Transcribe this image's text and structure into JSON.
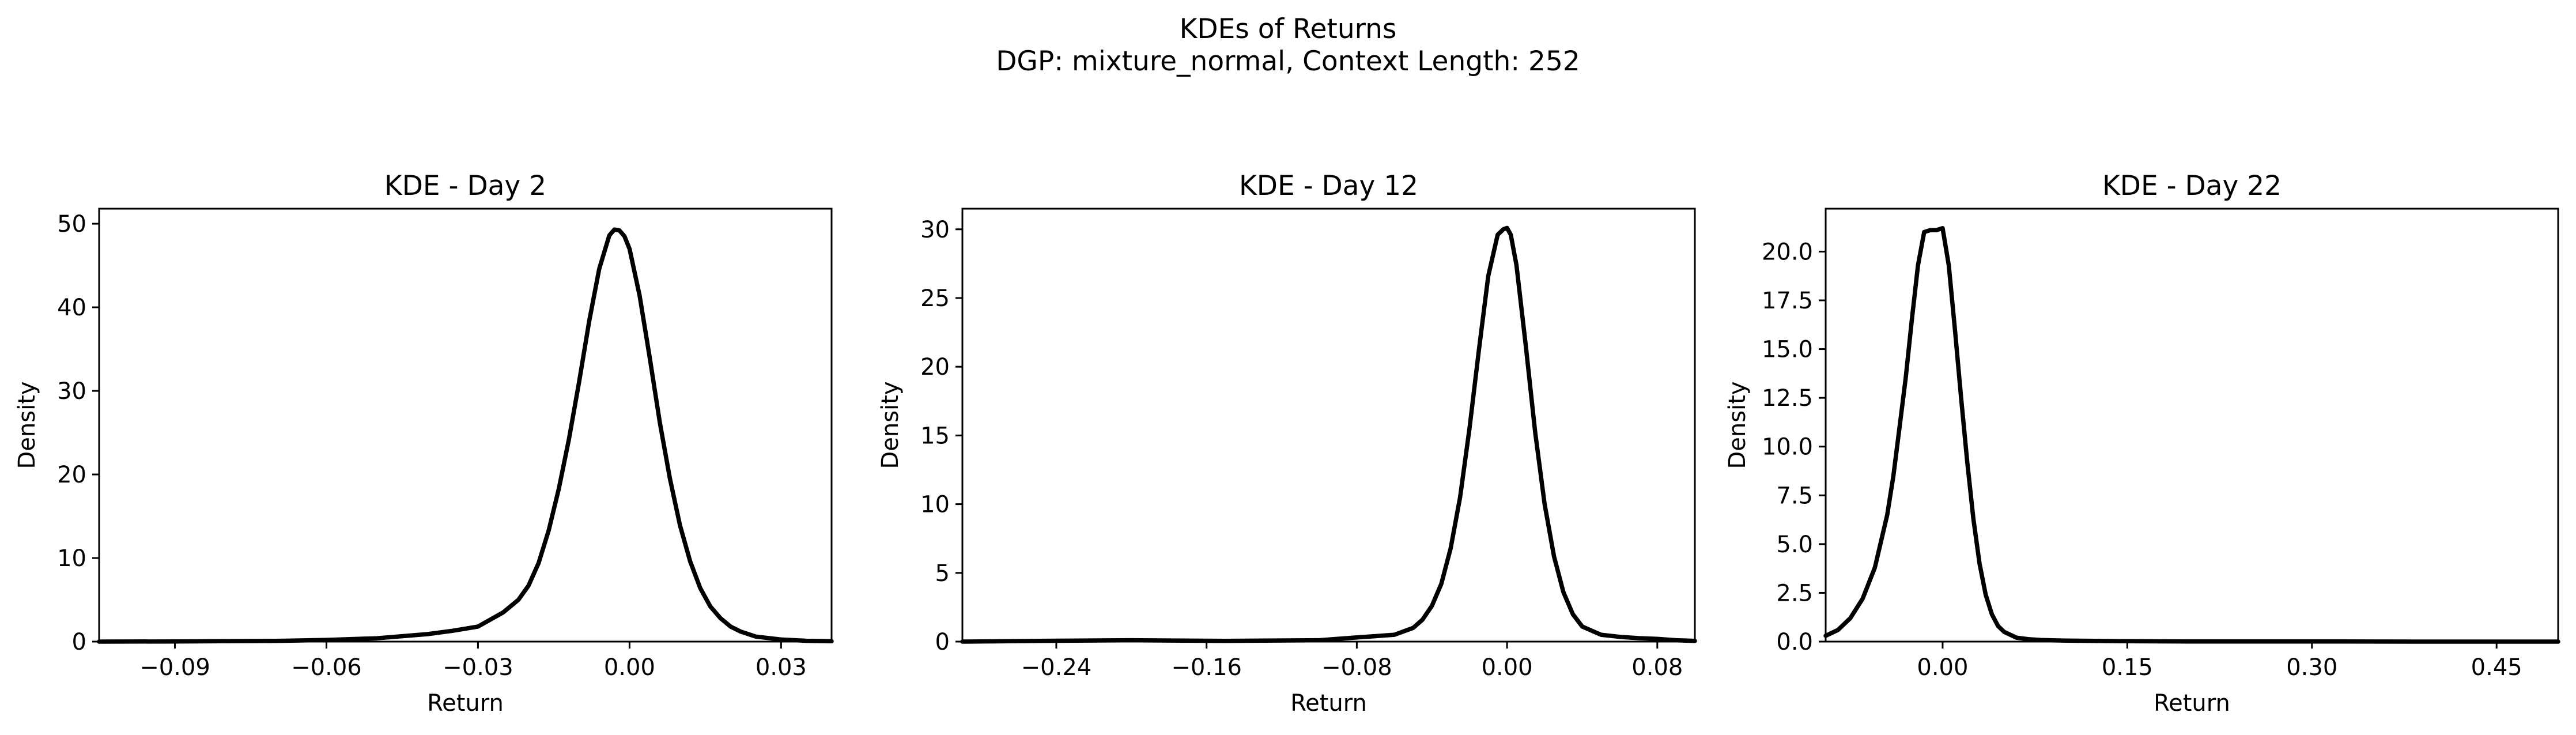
{
  "figure": {
    "title_line1": "KDEs of Returns",
    "title_line2": "DGP: mixture_normal, Context Length: 252"
  },
  "chart_data": [
    {
      "type": "line",
      "title": "KDE - Day 2",
      "xlabel": "Return",
      "ylabel": "Density",
      "xlim": [
        -0.105,
        0.04
      ],
      "ylim": [
        0,
        51.8
      ],
      "xticks": [
        -0.09,
        -0.06,
        -0.03,
        0.0,
        0.03
      ],
      "xtick_labels": [
        "−0.09",
        "−0.06",
        "−0.03",
        "0.00",
        "0.03"
      ],
      "yticks": [
        0,
        10,
        20,
        30,
        40,
        50
      ],
      "ytick_labels": [
        "0",
        "10",
        "20",
        "30",
        "40",
        "50"
      ],
      "grid": false,
      "color": "#000000",
      "series": [
        {
          "x": [
            -0.105,
            -0.09,
            -0.07,
            -0.06,
            -0.05,
            -0.04,
            -0.035,
            -0.03,
            -0.025,
            -0.022,
            -0.02,
            -0.018,
            -0.016,
            -0.014,
            -0.012,
            -0.01,
            -0.008,
            -0.006,
            -0.004,
            -0.003,
            -0.002,
            -0.001,
            0.0,
            0.002,
            0.004,
            0.006,
            0.008,
            0.01,
            0.012,
            0.014,
            0.016,
            0.018,
            0.02,
            0.022,
            0.025,
            0.03,
            0.035,
            0.04
          ],
          "y": [
            0,
            0.02,
            0.08,
            0.2,
            0.4,
            0.9,
            1.3,
            1.8,
            3.5,
            5.0,
            6.7,
            9.4,
            13.3,
            18.3,
            24.2,
            31.0,
            38.3,
            44.6,
            48.6,
            49.3,
            49.2,
            48.5,
            47.0,
            41.4,
            34.0,
            26.2,
            19.5,
            13.9,
            9.6,
            6.4,
            4.2,
            2.8,
            1.8,
            1.2,
            0.6,
            0.25,
            0.1,
            0.05
          ]
        }
      ]
    },
    {
      "type": "line",
      "title": "KDE - Day 12",
      "xlabel": "Return",
      "ylabel": "Density",
      "xlim": [
        -0.29,
        0.1
      ],
      "ylim": [
        0,
        31.5
      ],
      "xticks": [
        -0.24,
        -0.16,
        -0.08,
        0.0,
        0.08
      ],
      "xtick_labels": [
        "−0.24",
        "−0.16",
        "−0.08",
        "0.00",
        "0.08"
      ],
      "yticks": [
        0,
        5,
        10,
        15,
        20,
        25,
        30
      ],
      "ytick_labels": [
        "0",
        "5",
        "10",
        "15",
        "20",
        "25",
        "30"
      ],
      "grid": false,
      "color": "#000000",
      "series": [
        {
          "x": [
            -0.29,
            -0.25,
            -0.2,
            -0.15,
            -0.1,
            -0.08,
            -0.07,
            -0.06,
            -0.05,
            -0.045,
            -0.04,
            -0.035,
            -0.03,
            -0.025,
            -0.02,
            -0.015,
            -0.01,
            -0.005,
            -0.002,
            0.0,
            0.002,
            0.005,
            0.01,
            0.015,
            0.02,
            0.025,
            0.03,
            0.035,
            0.04,
            0.05,
            0.06,
            0.07,
            0.08,
            0.09,
            0.1
          ],
          "y": [
            0,
            0.05,
            0.1,
            0.05,
            0.1,
            0.3,
            0.4,
            0.5,
            1.0,
            1.6,
            2.6,
            4.2,
            6.8,
            10.5,
            15.5,
            21.2,
            26.6,
            29.6,
            30.0,
            30.1,
            29.6,
            27.4,
            21.5,
            15.2,
            10.0,
            6.2,
            3.6,
            2.0,
            1.1,
            0.5,
            0.35,
            0.25,
            0.2,
            0.1,
            0.05
          ]
        }
      ]
    },
    {
      "type": "line",
      "title": "KDE - Day 22",
      "xlabel": "Return",
      "ylabel": "Density",
      "xlim": [
        -0.095,
        0.5
      ],
      "ylim": [
        0,
        22.2
      ],
      "xticks": [
        0.0,
        0.15,
        0.3,
        0.45
      ],
      "xtick_labels": [
        "0.00",
        "0.15",
        "0.30",
        "0.45"
      ],
      "yticks": [
        0,
        2.5,
        5,
        7.5,
        10,
        12.5,
        15,
        17.5,
        20
      ],
      "ytick_labels": [
        "0.0",
        "2.5",
        "5.0",
        "7.5",
        "10.0",
        "12.5",
        "15.0",
        "17.5",
        "20.0"
      ],
      "grid": false,
      "color": "#000000",
      "series": [
        {
          "x": [
            -0.095,
            -0.085,
            -0.075,
            -0.065,
            -0.055,
            -0.045,
            -0.04,
            -0.035,
            -0.03,
            -0.025,
            -0.02,
            -0.015,
            -0.01,
            -0.005,
            0.0,
            0.005,
            0.01,
            0.015,
            0.02,
            0.025,
            0.03,
            0.035,
            0.04,
            0.045,
            0.05,
            0.06,
            0.07,
            0.08,
            0.1,
            0.15,
            0.2,
            0.3,
            0.4,
            0.5
          ],
          "y": [
            0.3,
            0.6,
            1.2,
            2.2,
            3.8,
            6.5,
            8.5,
            11.0,
            13.5,
            16.5,
            19.3,
            21.0,
            21.1,
            21.1,
            21.2,
            19.3,
            16.0,
            12.5,
            9.2,
            6.3,
            4.0,
            2.4,
            1.4,
            0.8,
            0.5,
            0.2,
            0.12,
            0.08,
            0.05,
            0.02,
            0.01,
            0.01,
            0.0,
            0.0
          ]
        }
      ]
    }
  ]
}
